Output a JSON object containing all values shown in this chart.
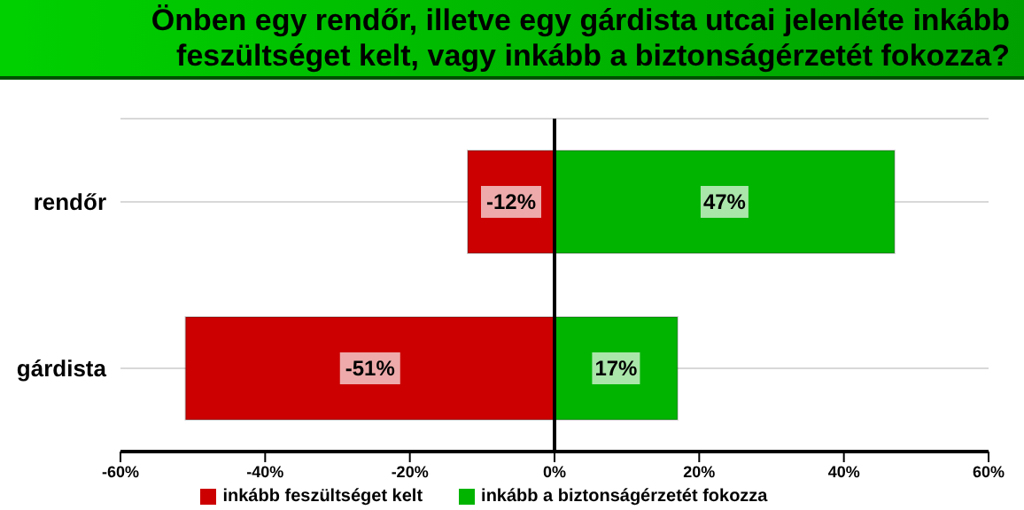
{
  "chart_data": {
    "type": "bar",
    "orientation": "horizontal",
    "stacked": true,
    "title": "Önben egy rendőr, illetve egy gárdista utcai jelenléte inkább feszültséget kelt, vagy inkább a biztonságérzetét fokozza?",
    "categories": [
      "rendőr",
      "gárdista"
    ],
    "series": [
      {
        "name": "inkább feszültséget kelt",
        "color": "#cc0000",
        "values": [
          -12,
          -51
        ],
        "value_labels": [
          "-12%",
          "-51%"
        ]
      },
      {
        "name": "inkább a biztonságérzetét fokozza",
        "color": "#00b400",
        "values": [
          47,
          17
        ],
        "value_labels": [
          "47%",
          "17%"
        ]
      }
    ],
    "xlim": [
      -60,
      60
    ],
    "xticks": [
      {
        "value": -60,
        "label": "-60%"
      },
      {
        "value": -40,
        "label": "-40%"
      },
      {
        "value": -20,
        "label": "-20%"
      },
      {
        "value": 0,
        "label": "0%"
      },
      {
        "value": 20,
        "label": "20%"
      },
      {
        "value": 40,
        "label": "40%"
      },
      {
        "value": 60,
        "label": "60%"
      }
    ],
    "grid": "y",
    "legend": "bottom"
  }
}
